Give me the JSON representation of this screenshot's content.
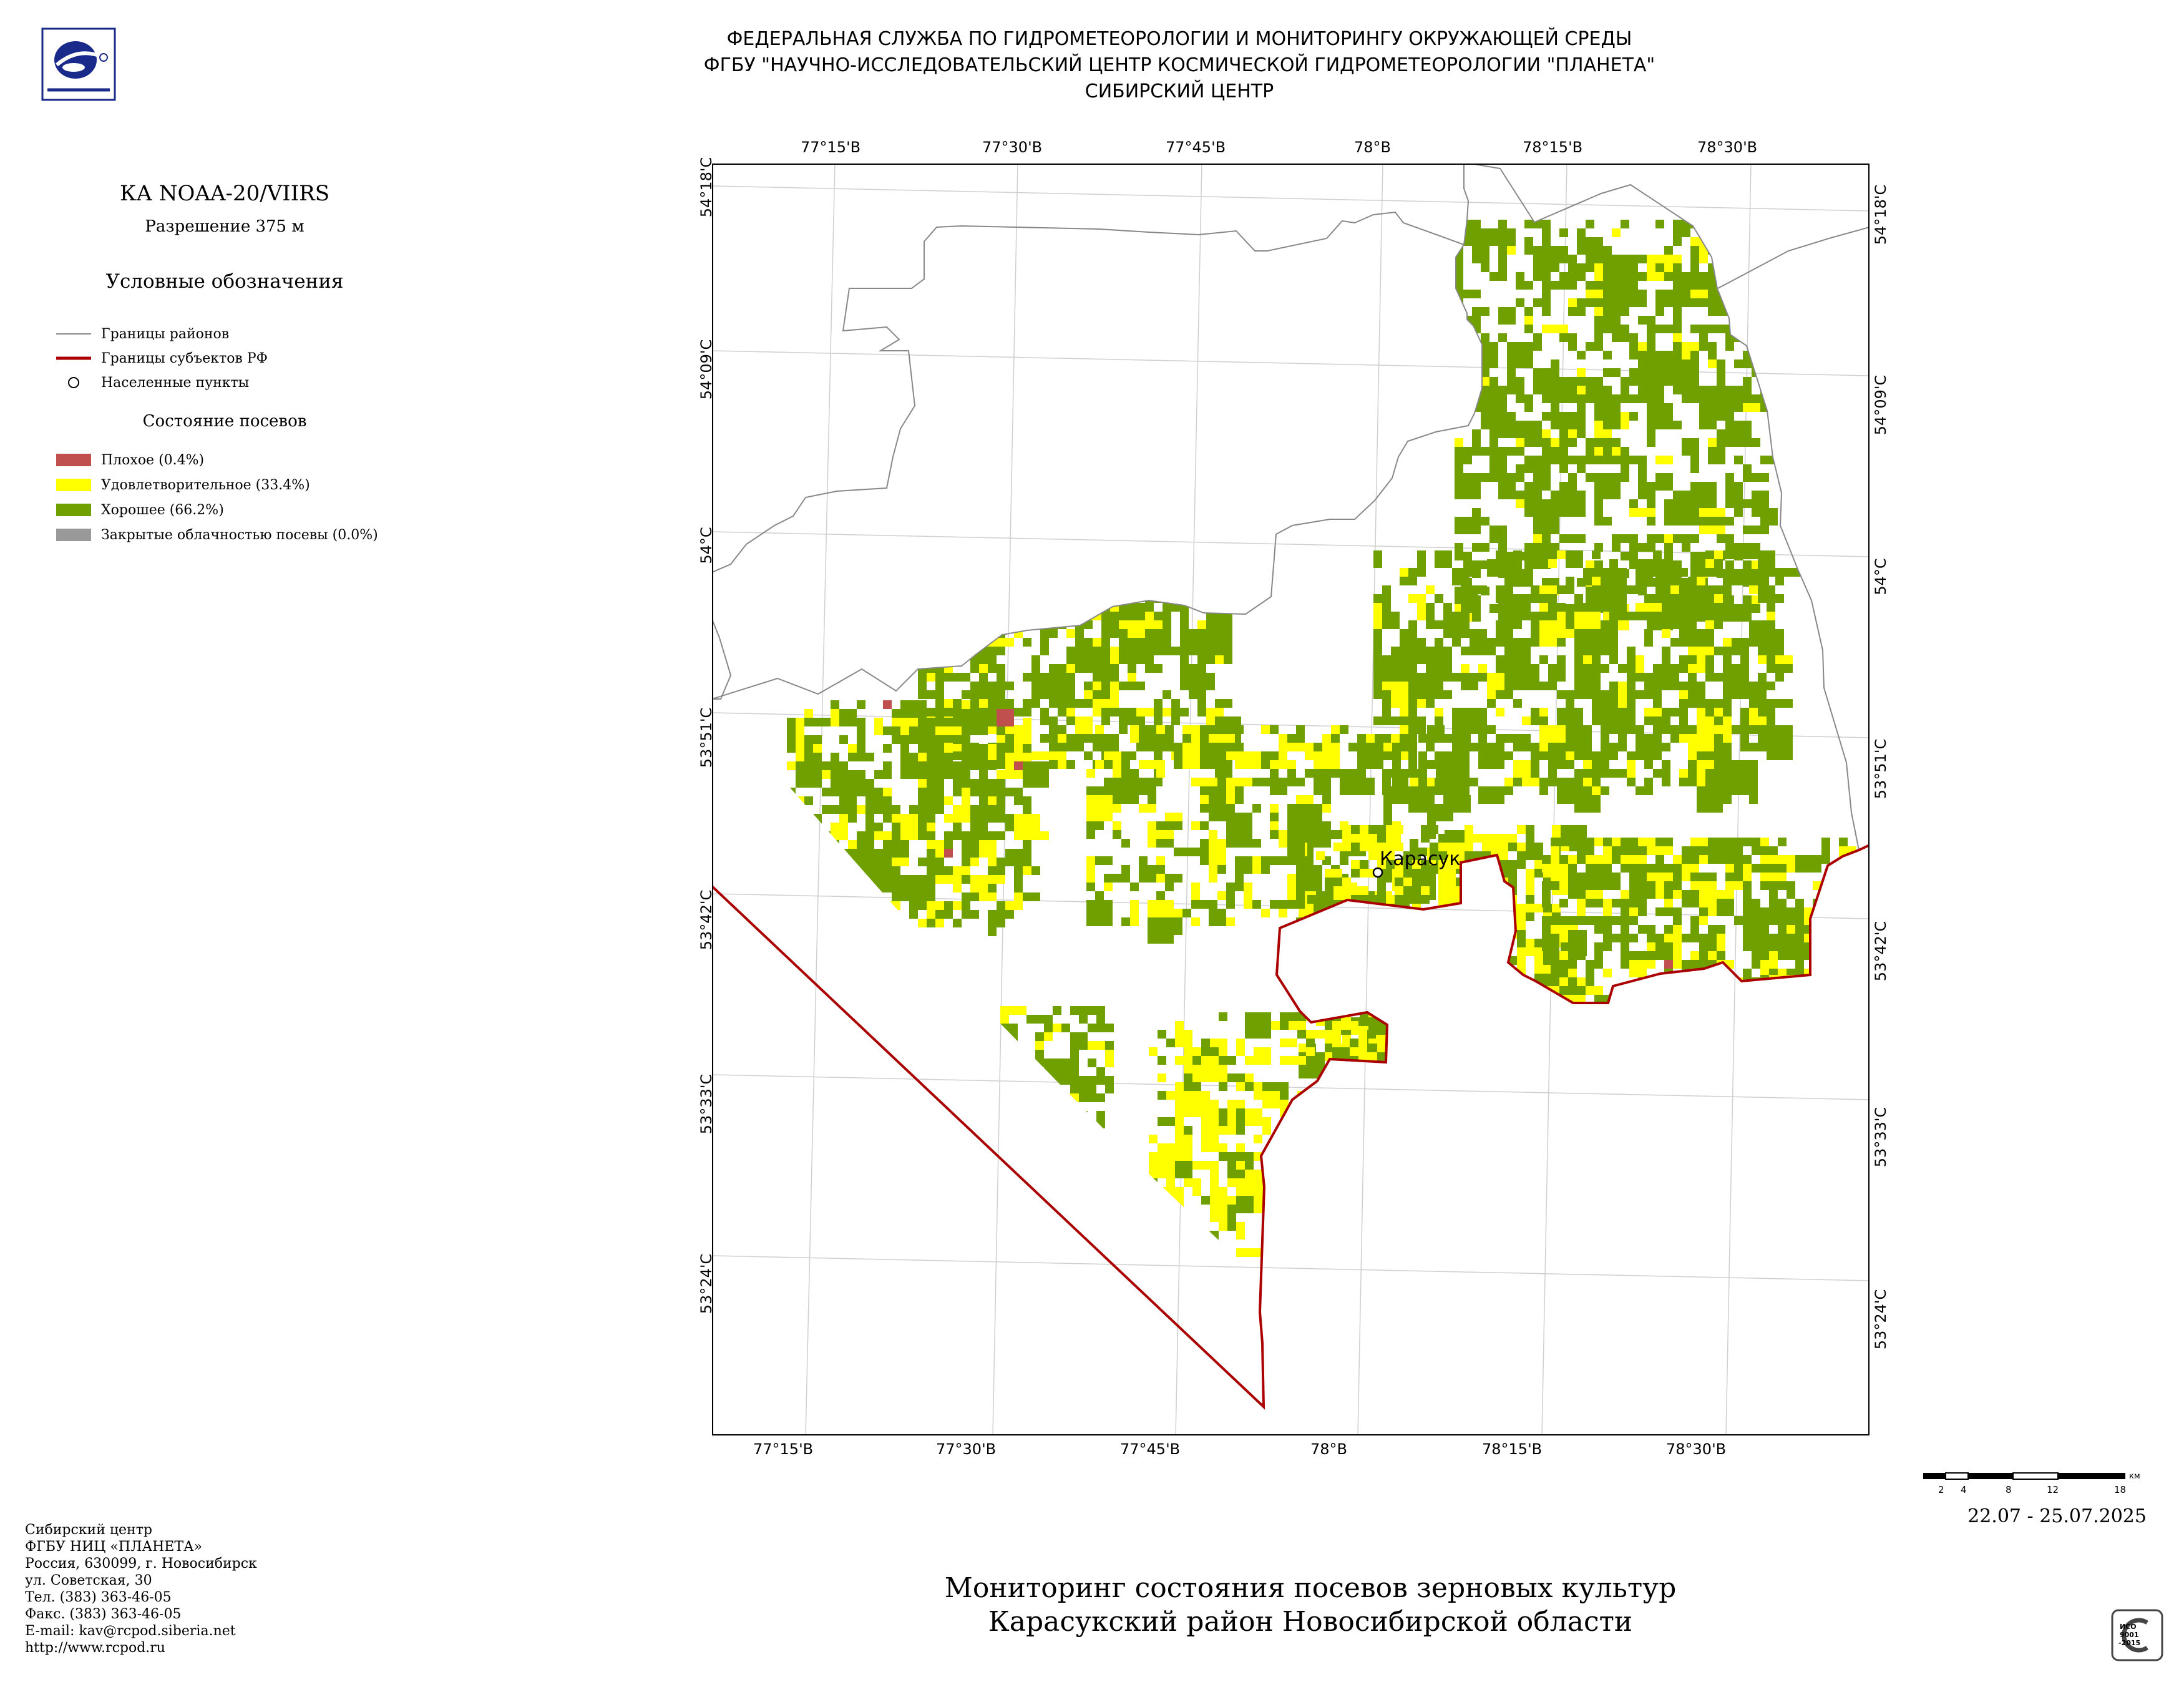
{
  "header": {
    "line1": "ФЕДЕРАЛЬНАЯ СЛУЖБА ПО ГИДРОМЕТЕОРОЛОГИИ И МОНИТОРИНГУ ОКРУЖАЮЩЕЙ СРЕДЫ",
    "line2": "ФГБУ \"НАУЧНО-ИССЛЕДОВАТЕЛЬСКИЙ ЦЕНТР КОСМИЧЕСКОЙ ГИДРОМЕТЕОРОЛОГИИ \"ПЛАНЕТА\"",
    "line3": "СИБИРСКИЙ ЦЕНТР"
  },
  "sidebar": {
    "satellite": "КА NOAA-20/VIIRS",
    "resolution": "Разрешение 375 м",
    "legend_title": "Условные обозначения",
    "boundaries": [
      {
        "label": "Границы районов",
        "color": "#888888"
      },
      {
        "label": "Границы субъектов РФ",
        "color": "#aa0000"
      },
      {
        "label": "Населенные пункты"
      }
    ],
    "crop_title": "Состояние посевов",
    "crop_classes": [
      {
        "label": "Плохое (0.4%)",
        "color": "#c0504d"
      },
      {
        "label": "Удовлетворительное (33.4%)",
        "color": "#ffff00"
      },
      {
        "label": "Хорошее (66.2%)",
        "color": "#70a000"
      },
      {
        "label": "Закрытые облачностью посевы (0.0%)",
        "color": "#999999"
      }
    ]
  },
  "map": {
    "top_lon": [
      "77°15'В",
      "77°30'В",
      "77°45'В",
      "78°В",
      "78°15'В",
      "78°30'В"
    ],
    "bottom_lon": [
      "77°15'В",
      "77°30'В",
      "77°45'В",
      "78°В",
      "78°15'В",
      "78°30'В"
    ],
    "left_lat": [
      "54°18'С",
      "54°09'С",
      "54°С",
      "53°51'С",
      "53°42'С",
      "53°33'С",
      "53°24'С"
    ],
    "right_lat": [
      "54°18'С",
      "54°09'С",
      "54°С",
      "53°51'С",
      "53°42'С",
      "53°33'С",
      "53°24'С"
    ],
    "town": "Карасук"
  },
  "scale": {
    "ticks": [
      "2",
      "4",
      "8",
      "12",
      "18"
    ],
    "unit": "км"
  },
  "date": "22.07 - 25.07.2025",
  "footer": {
    "lines": [
      "Сибирский центр",
      "ФГБУ НИЦ «ПЛАНЕТА»",
      "Россия, 630099, г. Новосибирск",
      "ул. Советская, 30",
      "Тел. (383) 363-46-05",
      "Факс. (383) 363-46-05",
      "E-mail: kav@rcpod.siberia.net",
      "http://www.rcpod.ru"
    ]
  },
  "title": {
    "line1": "Мониторинг состояния посевов зерновых культур",
    "line2": "Карасукский район Новосибирской области"
  },
  "iso_badge": {
    "text1": "ИСО",
    "text2": "9001",
    "text3": "-2015"
  }
}
